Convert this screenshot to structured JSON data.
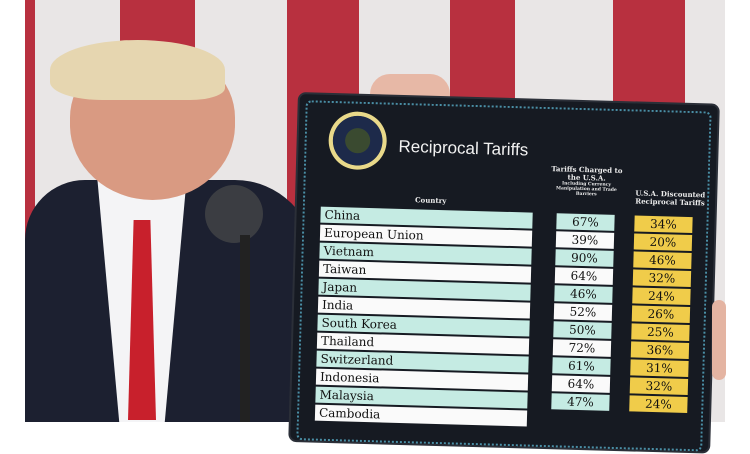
{
  "board": {
    "title": "Reciprocal Tariffs",
    "seal_text": "Seal of the President of the United States",
    "headers": {
      "country": "Country",
      "charged": "Tariffs Charged to the U.S.A.",
      "charged_sub": "Including Currency Manipulation and Trade Barriers",
      "discounted": "U.S.A. Discounted Reciprocal Tariffs"
    },
    "rows": [
      {
        "country": "China",
        "charged": "67%",
        "discounted": "34%"
      },
      {
        "country": "European Union",
        "charged": "39%",
        "discounted": "20%"
      },
      {
        "country": "Vietnam",
        "charged": "90%",
        "discounted": "46%"
      },
      {
        "country": "Taiwan",
        "charged": "64%",
        "discounted": "32%"
      },
      {
        "country": "Japan",
        "charged": "46%",
        "discounted": "24%"
      },
      {
        "country": "India",
        "charged": "52%",
        "discounted": "26%"
      },
      {
        "country": "South Korea",
        "charged": "50%",
        "discounted": "25%"
      },
      {
        "country": "Thailand",
        "charged": "72%",
        "discounted": "36%"
      },
      {
        "country": "Switzerland",
        "charged": "61%",
        "discounted": "31%"
      },
      {
        "country": "Indonesia",
        "charged": "64%",
        "discounted": "32%"
      },
      {
        "country": "Malaysia",
        "charged": "47%",
        "discounted": "24%"
      },
      {
        "country": "Cambodia",
        "charged": "",
        "discounted": ""
      }
    ]
  },
  "colors": {
    "flag_red": "#b8303f",
    "board": "#161a22",
    "teal_row": "#c5ebe3",
    "yellow_cell": "#f0cc4a"
  }
}
